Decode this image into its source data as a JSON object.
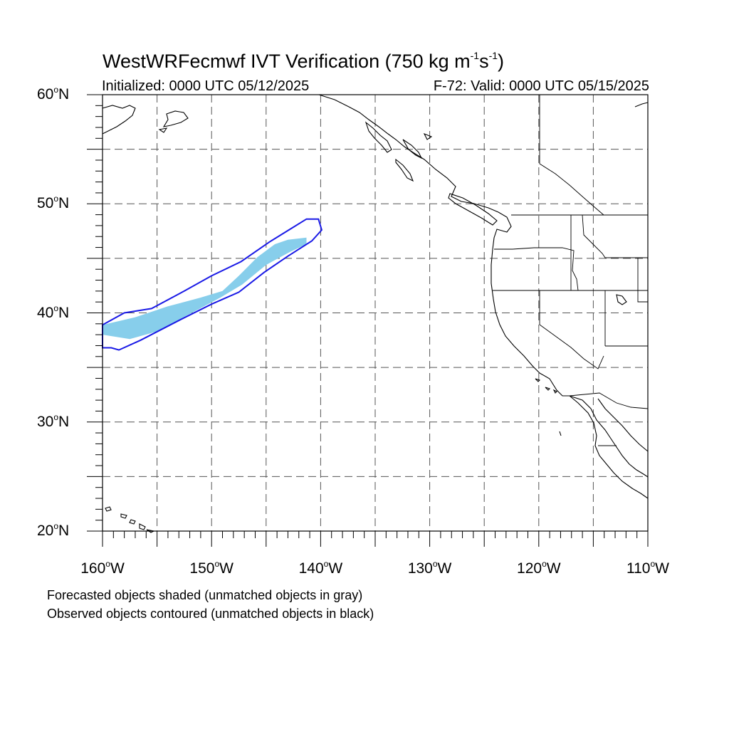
{
  "title": {
    "text": "WestWRFecmwf IVT Verification (750 kg m",
    "exp1": "-1",
    "mid": "s",
    "exp2": "-1",
    "end": ")"
  },
  "subtitle_left": "Initialized: 0000 UTC 05/12/2025",
  "subtitle_right": "F-72: Valid: 0000 UTC 05/15/2025",
  "lat_ticks": [
    {
      "lat": 60,
      "deg": "60",
      "hemi": "N"
    },
    {
      "lat": 50,
      "deg": "50",
      "hemi": "N"
    },
    {
      "lat": 40,
      "deg": "40",
      "hemi": "N"
    },
    {
      "lat": 30,
      "deg": "30",
      "hemi": "N"
    },
    {
      "lat": 20,
      "deg": "20",
      "hemi": "N"
    }
  ],
  "lon_ticks": [
    {
      "lon": -160,
      "deg": "160",
      "hemi": "W"
    },
    {
      "lon": -150,
      "deg": "150",
      "hemi": "W"
    },
    {
      "lon": -140,
      "deg": "140",
      "hemi": "W"
    },
    {
      "lon": -130,
      "deg": "130",
      "hemi": "W"
    },
    {
      "lon": -120,
      "deg": "120",
      "hemi": "W"
    },
    {
      "lon": -110,
      "deg": "110",
      "hemi": "W"
    }
  ],
  "extent": {
    "lon_min": -160,
    "lon_max": -110,
    "lat_min": 20,
    "lat_max": 60
  },
  "caption": [
    "Forecasted objects shaded (unmatched objects in gray)",
    "Observed objects contoured (unmatched objects in black)"
  ],
  "colors": {
    "forecast_fill": "#87ceeb",
    "observed_contour": "#1a1ae6",
    "coast": "#000000",
    "grid": "#555555"
  },
  "forecast_object": [
    [
      -160,
      38.9
    ],
    [
      -157,
      39.6
    ],
    [
      -154,
      40.6
    ],
    [
      -151,
      41.4
    ],
    [
      -149,
      42.0
    ],
    [
      -147.5,
      43.4
    ],
    [
      -145.8,
      45.1
    ],
    [
      -144.2,
      46.3
    ],
    [
      -143.0,
      46.7
    ],
    [
      -141.3,
      46.9
    ],
    [
      -141.3,
      46.3
    ],
    [
      -142.8,
      45.6
    ],
    [
      -145,
      44.4
    ],
    [
      -147.2,
      42.6
    ],
    [
      -149.2,
      41.4
    ],
    [
      -152,
      39.9
    ],
    [
      -155,
      38.3
    ],
    [
      -157.5,
      37.6
    ],
    [
      -160,
      38.0
    ]
  ],
  "observed_object": [
    [
      -160,
      38.9
    ],
    [
      -158,
      40.0
    ],
    [
      -155.5,
      40.4
    ],
    [
      -152.5,
      42.0
    ],
    [
      -150,
      43.4
    ],
    [
      -147.3,
      44.7
    ],
    [
      -144.7,
      46.5
    ],
    [
      -142.6,
      47.8
    ],
    [
      -141.3,
      48.6
    ],
    [
      -140.2,
      48.6
    ],
    [
      -139.9,
      47.6
    ],
    [
      -140.8,
      46.6
    ],
    [
      -143.0,
      45.2
    ],
    [
      -145.2,
      43.7
    ],
    [
      -147.5,
      41.9
    ],
    [
      -150.0,
      40.8
    ],
    [
      -153.0,
      39.3
    ],
    [
      -156.5,
      37.5
    ],
    [
      -158.5,
      36.6
    ],
    [
      -159.2,
      36.8
    ],
    [
      -160,
      36.8
    ]
  ]
}
